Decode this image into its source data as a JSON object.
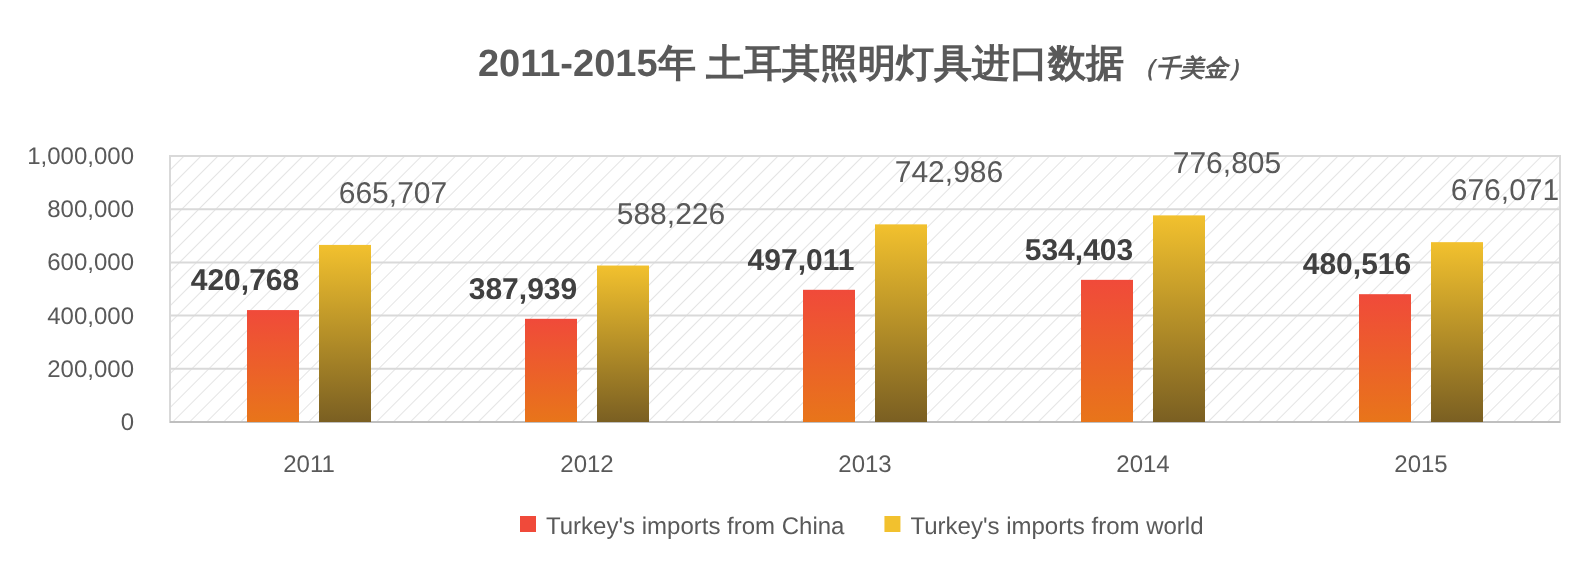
{
  "chart_data": {
    "type": "bar",
    "title": "2011-2015年 土耳其照明灯具进口数据",
    "subtitle": "（千美金）",
    "categories": [
      "2011",
      "2012",
      "2013",
      "2014",
      "2015"
    ],
    "series": [
      {
        "name": "Turkey's imports from China",
        "color": "#f04a3a",
        "values": [
          420768,
          387939,
          497011,
          534403,
          480516
        ],
        "value_labels": [
          "420,768",
          "387,939",
          "497,011",
          "534,403",
          "480,516"
        ]
      },
      {
        "name": "Turkey's imports from world",
        "color": "#f2c12e",
        "values": [
          665707,
          588226,
          742986,
          776805,
          676071
        ],
        "value_labels": [
          "665,707",
          "588,226",
          "742,986",
          "776,805",
          "676,071"
        ]
      }
    ],
    "ylim": [
      0,
      1000000
    ],
    "yticks": [
      {
        "value": 0,
        "label": "0"
      },
      {
        "value": 200000,
        "label": "200,000"
      },
      {
        "value": 400000,
        "label": "400,000"
      },
      {
        "value": 600000,
        "label": "600,000"
      },
      {
        "value": 800000,
        "label": "800,000"
      },
      {
        "value": 1000000,
        "label": "1,000,000"
      }
    ],
    "grid": "y",
    "legend": "bottom"
  }
}
